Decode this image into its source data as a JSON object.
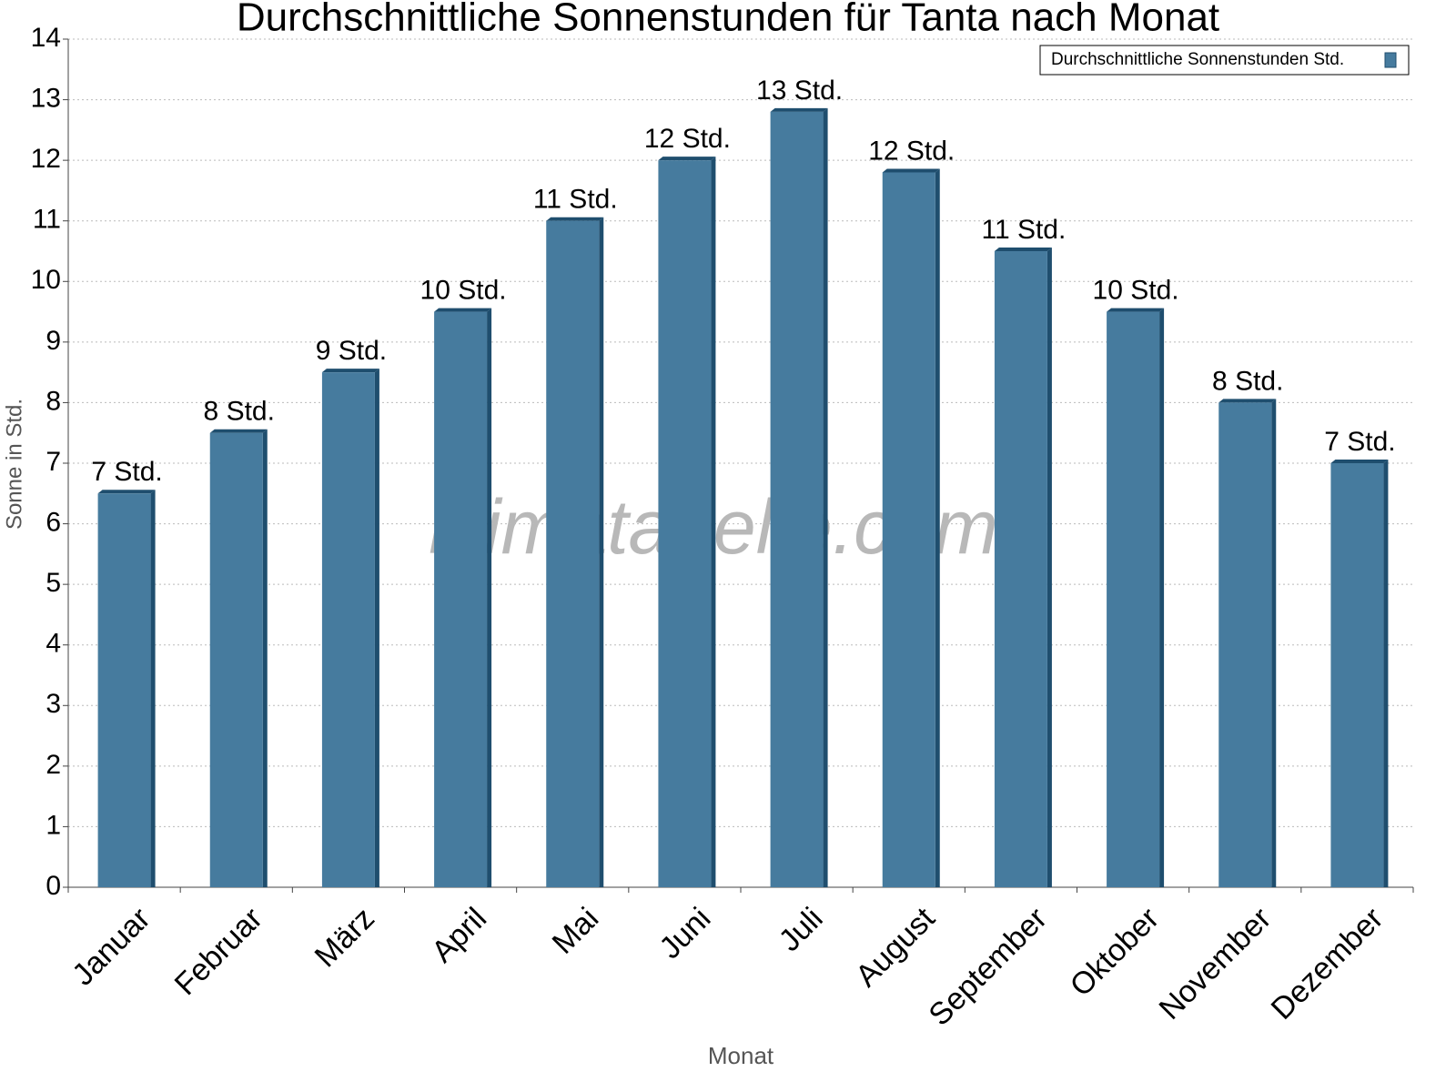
{
  "chart_data": {
    "type": "bar",
    "title": "Durchschnittliche Sonnenstunden für Tanta nach Monat",
    "x_label": "Monat",
    "y_label": "Sonne in Std.",
    "watermark": "klimatabelle.com",
    "categories": [
      "Januar",
      "Februar",
      "März",
      "April",
      "Mai",
      "Juni",
      "Juli",
      "August",
      "September",
      "Oktober",
      "November",
      "Dezember"
    ],
    "series": [
      {
        "name": "Durchschnittliche Sonnenstunden Std.",
        "color": "#467b9e",
        "values": [
          6.5,
          7.5,
          8.5,
          9.5,
          11,
          12,
          12.8,
          11.8,
          10.5,
          9.5,
          8,
          7
        ],
        "value_labels": [
          "7 Std.",
          "8 Std.",
          "9 Std.",
          "10 Std.",
          "11 Std.",
          "12 Std.",
          "13 Std.",
          "12 Std.",
          "11 Std.",
          "10 Std.",
          "8 Std.",
          "7 Std."
        ]
      }
    ],
    "ylim": [
      0,
      14
    ],
    "yticks": [
      0,
      1,
      2,
      3,
      4,
      5,
      6,
      7,
      8,
      9,
      10,
      11,
      12,
      13,
      14
    ],
    "grid": true,
    "legend": "top-right"
  }
}
